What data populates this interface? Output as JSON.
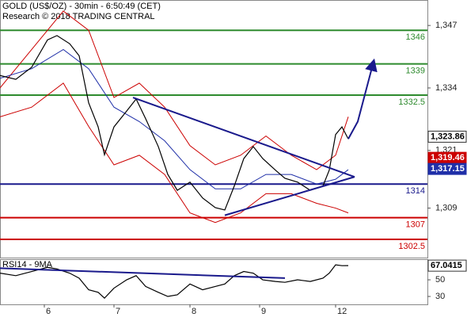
{
  "chart_data": [
    {
      "type": "line",
      "title": "GOLD (US$/OZ) - 30min - 6:50:49 (CET)",
      "subtitle": "Research © 2018 TRADING CENTRAL",
      "xlim": [
        0,
        135
      ],
      "ylim": [
        1298.7,
        1352.3
      ],
      "yticks": [
        {
          "value": 1309,
          "label": "1,309"
        },
        {
          "value": 1321,
          "label": "1,321"
        },
        {
          "value": 1334,
          "label": "1,334"
        },
        {
          "value": 1347,
          "label": "1,347"
        }
      ],
      "x": [
        0,
        5,
        10,
        15,
        18,
        22,
        25,
        28,
        31,
        33,
        36,
        40,
        43,
        46,
        50,
        53,
        56,
        60,
        64,
        68,
        71,
        74,
        77,
        80,
        83,
        87,
        90,
        94,
        98,
        102,
        104,
        106,
        108,
        110
      ],
      "series": [
        {
          "color": "#000000",
          "values": [
            1336.6,
            1335.8,
            1338.3,
            1344.0,
            1344.9,
            1343.2,
            1340.7,
            1330.9,
            1325.9,
            1320.1,
            1325.9,
            1329.2,
            1331.7,
            1327.6,
            1321.8,
            1316.0,
            1312.7,
            1314.4,
            1311.1,
            1309.1,
            1308.6,
            1313.6,
            1319.3,
            1321.8,
            1319.3,
            1316.9,
            1315.2,
            1314.4,
            1312.7,
            1313.6,
            1316.9,
            1324.3,
            1325.9,
            1323.4
          ]
        }
      ],
      "bands_x": [
        0,
        10,
        20,
        28,
        36,
        44,
        52,
        60,
        68,
        76,
        84,
        92,
        100,
        106,
        110
      ],
      "bands": [
        {
          "color": "#cc0000",
          "values": [
            1334,
            1342,
            1350,
            1346,
            1332,
            1335,
            1330,
            1322,
            1318,
            1320,
            1324,
            1320,
            1317,
            1320,
            1328
          ]
        },
        {
          "color": "#cc0000",
          "values": [
            1328,
            1330,
            1335,
            1326,
            1318,
            1320,
            1316,
            1308,
            1306,
            1308,
            1312,
            1312,
            1310,
            1309,
            1308
          ]
        },
        {
          "color": "#1f2fa8",
          "values": [
            1336,
            1338,
            1342,
            1338,
            1330,
            1327,
            1323,
            1317,
            1313,
            1313,
            1316,
            1316,
            1314,
            1315,
            1317
          ]
        }
      ],
      "levels": [
        {
          "value": 1346,
          "color": "#2e8b2e"
        },
        {
          "value": 1339,
          "color": "#2e8b2e"
        },
        {
          "value": 1332.5,
          "color": "#2e8b2e"
        },
        {
          "value": 1314,
          "color": "#1a1a8c"
        },
        {
          "value": 1307,
          "color": "#cc0000"
        },
        {
          "value": 1302.5,
          "color": "#cc0000"
        }
      ],
      "trendlines": [
        {
          "color": "#1a1a8c",
          "x": [
            42,
            112
          ],
          "values": [
            1332,
            1315.5
          ]
        },
        {
          "color": "#1a1a8c",
          "x": [
            71,
            112
          ],
          "values": [
            1307.5,
            1315.5
          ]
        },
        {
          "color": "#1a1a8c",
          "x": [
            110,
            113,
            118
          ],
          "values": [
            1323.4,
            1327,
            1339.5
          ]
        }
      ],
      "price_labels": [
        {
          "value": 1323.86,
          "label": "1,323.86",
          "color": "#ffffff"
        },
        {
          "value": 1319.46,
          "label": "1,319.46",
          "color": "#cc0000"
        },
        {
          "value": 1317.15,
          "label": "1,317.15",
          "color": "#1f2fa8"
        }
      ]
    },
    {
      "type": "line",
      "title": "RSI14 - 9MA",
      "xlim": [
        0,
        135
      ],
      "ylim": [
        20.5,
        74.8
      ],
      "yticks": [
        30,
        50
      ],
      "xticks": [
        {
          "value": 14,
          "label": "6"
        },
        {
          "value": 36,
          "label": "7"
        },
        {
          "value": 60,
          "label": "8"
        },
        {
          "value": 82,
          "label": "9"
        },
        {
          "value": 106,
          "label": "12"
        }
      ],
      "x": [
        0,
        5,
        10,
        15,
        18,
        22,
        25,
        28,
        31,
        33,
        36,
        40,
        43,
        46,
        50,
        53,
        56,
        60,
        64,
        68,
        71,
        74,
        77,
        80,
        83,
        87,
        90,
        94,
        98,
        102,
        104,
        106,
        108,
        110
      ],
      "series": [
        {
          "color": "#000000",
          "values": [
            58,
            55,
            60,
            65,
            63,
            58,
            52,
            38,
            35,
            28,
            40,
            50,
            55,
            42,
            35,
            30,
            32,
            45,
            38,
            42,
            45,
            55,
            60,
            58,
            50,
            48,
            47,
            50,
            48,
            52,
            58,
            68,
            67,
            67.0415
          ]
        }
      ],
      "trendlines": [
        {
          "color": "#1a1a8c",
          "x": [
            0,
            90
          ],
          "values": [
            64,
            52
          ]
        }
      ],
      "price_labels": [
        {
          "value": 67.0415,
          "label": "67.0415",
          "color": "#ffffff"
        }
      ]
    }
  ]
}
